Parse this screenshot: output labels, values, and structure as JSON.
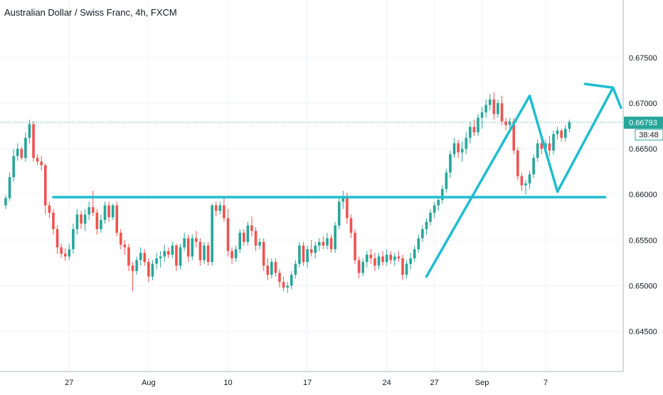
{
  "chart_data": {
    "type": "candlestick",
    "title": "Australian Dollar / Swiss Franc, 4h, FXCM",
    "symbol": "AUDCHF",
    "timeframe": "4h",
    "source": "FXCM",
    "last_price": "0.66793",
    "countdown": "38:48",
    "grid": true,
    "y_axis": {
      "position": "right",
      "range": [
        0.6406,
        0.6813
      ],
      "ticks": [
        0.645,
        0.65,
        0.655,
        0.66,
        0.665,
        0.67,
        0.675
      ],
      "tick_labels": [
        "0.64500",
        "0.65000",
        "0.65500",
        "0.66000",
        "0.66500",
        "0.67000",
        "0.67500"
      ]
    },
    "x_axis": {
      "ticks": [
        {
          "label": "27",
          "idx": 16
        },
        {
          "label": "Aug",
          "idx": 36
        },
        {
          "label": "10",
          "idx": 56
        },
        {
          "label": "17",
          "idx": 76
        },
        {
          "label": "24",
          "idx": 96
        },
        {
          "label": "27",
          "idx": 108
        },
        {
          "label": "Sep",
          "idx": 120
        },
        {
          "label": "7",
          "idx": 136
        }
      ]
    },
    "candles": [
      {
        "o": 0.6588,
        "h": 0.6599,
        "l": 0.6584,
        "c": 0.6596
      },
      {
        "o": 0.6596,
        "h": 0.6624,
        "l": 0.6593,
        "c": 0.6619
      },
      {
        "o": 0.6619,
        "h": 0.665,
        "l": 0.6614,
        "c": 0.6642
      },
      {
        "o": 0.6642,
        "h": 0.6656,
        "l": 0.6637,
        "c": 0.665
      },
      {
        "o": 0.665,
        "h": 0.6652,
        "l": 0.6638,
        "c": 0.664
      },
      {
        "o": 0.664,
        "h": 0.6668,
        "l": 0.6636,
        "c": 0.6662
      },
      {
        "o": 0.6662,
        "h": 0.6682,
        "l": 0.6656,
        "c": 0.6677
      },
      {
        "o": 0.6677,
        "h": 0.668,
        "l": 0.6636,
        "c": 0.664
      },
      {
        "o": 0.664,
        "h": 0.6644,
        "l": 0.6632,
        "c": 0.6636
      },
      {
        "o": 0.6636,
        "h": 0.6642,
        "l": 0.6626,
        "c": 0.6632
      },
      {
        "o": 0.6632,
        "h": 0.6634,
        "l": 0.6578,
        "c": 0.6588
      },
      {
        "o": 0.6588,
        "h": 0.6592,
        "l": 0.6574,
        "c": 0.658
      },
      {
        "o": 0.658,
        "h": 0.6584,
        "l": 0.6556,
        "c": 0.6562
      },
      {
        "o": 0.6562,
        "h": 0.6566,
        "l": 0.6535,
        "c": 0.6542
      },
      {
        "o": 0.6542,
        "h": 0.6546,
        "l": 0.6531,
        "c": 0.6535
      },
      {
        "o": 0.6535,
        "h": 0.6541,
        "l": 0.6527,
        "c": 0.6532
      },
      {
        "o": 0.6532,
        "h": 0.6546,
        "l": 0.6528,
        "c": 0.654
      },
      {
        "o": 0.654,
        "h": 0.6568,
        "l": 0.6535,
        "c": 0.6562
      },
      {
        "o": 0.6562,
        "h": 0.6584,
        "l": 0.6556,
        "c": 0.6578
      },
      {
        "o": 0.6578,
        "h": 0.6582,
        "l": 0.6562,
        "c": 0.6568
      },
      {
        "o": 0.6568,
        "h": 0.6584,
        "l": 0.656,
        "c": 0.6578
      },
      {
        "o": 0.6578,
        "h": 0.6592,
        "l": 0.6572,
        "c": 0.6586
      },
      {
        "o": 0.6586,
        "h": 0.6604,
        "l": 0.6576,
        "c": 0.658
      },
      {
        "o": 0.658,
        "h": 0.6584,
        "l": 0.6556,
        "c": 0.6562
      },
      {
        "o": 0.6562,
        "h": 0.6578,
        "l": 0.6558,
        "c": 0.6572
      },
      {
        "o": 0.6572,
        "h": 0.6592,
        "l": 0.6568,
        "c": 0.6588
      },
      {
        "o": 0.6588,
        "h": 0.6592,
        "l": 0.657,
        "c": 0.6575
      },
      {
        "o": 0.6575,
        "h": 0.659,
        "l": 0.6572,
        "c": 0.6588
      },
      {
        "o": 0.6588,
        "h": 0.6592,
        "l": 0.6554,
        "c": 0.6558
      },
      {
        "o": 0.6558,
        "h": 0.6562,
        "l": 0.654,
        "c": 0.6545
      },
      {
        "o": 0.6545,
        "h": 0.655,
        "l": 0.6534,
        "c": 0.6542
      },
      {
        "o": 0.6542,
        "h": 0.6546,
        "l": 0.6516,
        "c": 0.6522
      },
      {
        "o": 0.6522,
        "h": 0.6526,
        "l": 0.6494,
        "c": 0.6516
      },
      {
        "o": 0.6516,
        "h": 0.6532,
        "l": 0.6512,
        "c": 0.6528
      },
      {
        "o": 0.6528,
        "h": 0.6542,
        "l": 0.6522,
        "c": 0.6536
      },
      {
        "o": 0.6536,
        "h": 0.654,
        "l": 0.6522,
        "c": 0.6526
      },
      {
        "o": 0.6526,
        "h": 0.653,
        "l": 0.6504,
        "c": 0.651
      },
      {
        "o": 0.651,
        "h": 0.6528,
        "l": 0.6506,
        "c": 0.6524
      },
      {
        "o": 0.6524,
        "h": 0.6536,
        "l": 0.6518,
        "c": 0.653
      },
      {
        "o": 0.653,
        "h": 0.6538,
        "l": 0.652,
        "c": 0.6532
      },
      {
        "o": 0.6532,
        "h": 0.6545,
        "l": 0.6526,
        "c": 0.6538
      },
      {
        "o": 0.6538,
        "h": 0.6542,
        "l": 0.653,
        "c": 0.6534
      },
      {
        "o": 0.6534,
        "h": 0.6548,
        "l": 0.653,
        "c": 0.6544
      },
      {
        "o": 0.6544,
        "h": 0.6546,
        "l": 0.6516,
        "c": 0.6522
      },
      {
        "o": 0.6522,
        "h": 0.6546,
        "l": 0.6518,
        "c": 0.6542
      },
      {
        "o": 0.6542,
        "h": 0.6558,
        "l": 0.6538,
        "c": 0.6552
      },
      {
        "o": 0.6552,
        "h": 0.6556,
        "l": 0.6526,
        "c": 0.6532
      },
      {
        "o": 0.6532,
        "h": 0.6556,
        "l": 0.6528,
        "c": 0.6552
      },
      {
        "o": 0.6552,
        "h": 0.656,
        "l": 0.6542,
        "c": 0.6548
      },
      {
        "o": 0.6548,
        "h": 0.6552,
        "l": 0.6522,
        "c": 0.6528
      },
      {
        "o": 0.6528,
        "h": 0.6548,
        "l": 0.6524,
        "c": 0.6544
      },
      {
        "o": 0.6544,
        "h": 0.6548,
        "l": 0.6522,
        "c": 0.6526
      },
      {
        "o": 0.6526,
        "h": 0.659,
        "l": 0.6522,
        "c": 0.6588
      },
      {
        "o": 0.6588,
        "h": 0.6592,
        "l": 0.6576,
        "c": 0.6582
      },
      {
        "o": 0.6582,
        "h": 0.6592,
        "l": 0.6578,
        "c": 0.6588
      },
      {
        "o": 0.6588,
        "h": 0.6596,
        "l": 0.657,
        "c": 0.6574
      },
      {
        "o": 0.6574,
        "h": 0.6584,
        "l": 0.6532,
        "c": 0.6538
      },
      {
        "o": 0.6538,
        "h": 0.6542,
        "l": 0.6524,
        "c": 0.653
      },
      {
        "o": 0.653,
        "h": 0.6544,
        "l": 0.6526,
        "c": 0.654
      },
      {
        "o": 0.654,
        "h": 0.6562,
        "l": 0.6536,
        "c": 0.6558
      },
      {
        "o": 0.6558,
        "h": 0.6562,
        "l": 0.6544,
        "c": 0.6548
      },
      {
        "o": 0.6548,
        "h": 0.657,
        "l": 0.6544,
        "c": 0.6566
      },
      {
        "o": 0.6566,
        "h": 0.6576,
        "l": 0.6554,
        "c": 0.656
      },
      {
        "o": 0.656,
        "h": 0.6564,
        "l": 0.6538,
        "c": 0.6544
      },
      {
        "o": 0.6544,
        "h": 0.6552,
        "l": 0.654,
        "c": 0.6548
      },
      {
        "o": 0.6548,
        "h": 0.6552,
        "l": 0.6516,
        "c": 0.6522
      },
      {
        "o": 0.6522,
        "h": 0.653,
        "l": 0.6506,
        "c": 0.6512
      },
      {
        "o": 0.6512,
        "h": 0.653,
        "l": 0.6508,
        "c": 0.6526
      },
      {
        "o": 0.6526,
        "h": 0.653,
        "l": 0.651,
        "c": 0.6514
      },
      {
        "o": 0.6514,
        "h": 0.6518,
        "l": 0.6498,
        "c": 0.6504
      },
      {
        "o": 0.6504,
        "h": 0.651,
        "l": 0.6494,
        "c": 0.6498
      },
      {
        "o": 0.6498,
        "h": 0.6504,
        "l": 0.6492,
        "c": 0.65
      },
      {
        "o": 0.65,
        "h": 0.6516,
        "l": 0.6496,
        "c": 0.6512
      },
      {
        "o": 0.6512,
        "h": 0.6528,
        "l": 0.6508,
        "c": 0.6524
      },
      {
        "o": 0.6524,
        "h": 0.6548,
        "l": 0.652,
        "c": 0.6544
      },
      {
        "o": 0.6544,
        "h": 0.6548,
        "l": 0.6522,
        "c": 0.6526
      },
      {
        "o": 0.6526,
        "h": 0.6544,
        "l": 0.652,
        "c": 0.654
      },
      {
        "o": 0.654,
        "h": 0.655,
        "l": 0.6532,
        "c": 0.6536
      },
      {
        "o": 0.6536,
        "h": 0.6548,
        "l": 0.653,
        "c": 0.6544
      },
      {
        "o": 0.6544,
        "h": 0.6552,
        "l": 0.6538,
        "c": 0.6548
      },
      {
        "o": 0.6548,
        "h": 0.6554,
        "l": 0.654,
        "c": 0.6544
      },
      {
        "o": 0.6544,
        "h": 0.6558,
        "l": 0.654,
        "c": 0.6552
      },
      {
        "o": 0.6552,
        "h": 0.6556,
        "l": 0.6536,
        "c": 0.654
      },
      {
        "o": 0.654,
        "h": 0.657,
        "l": 0.6536,
        "c": 0.6566
      },
      {
        "o": 0.6566,
        "h": 0.6596,
        "l": 0.6562,
        "c": 0.6592
      },
      {
        "o": 0.6592,
        "h": 0.6604,
        "l": 0.6584,
        "c": 0.6598
      },
      {
        "o": 0.6598,
        "h": 0.6602,
        "l": 0.6568,
        "c": 0.6574
      },
      {
        "o": 0.6574,
        "h": 0.6578,
        "l": 0.6552,
        "c": 0.6558
      },
      {
        "o": 0.6558,
        "h": 0.6562,
        "l": 0.6524,
        "c": 0.6528
      },
      {
        "o": 0.6528,
        "h": 0.6532,
        "l": 0.6508,
        "c": 0.6514
      },
      {
        "o": 0.6514,
        "h": 0.653,
        "l": 0.651,
        "c": 0.6526
      },
      {
        "o": 0.6526,
        "h": 0.6538,
        "l": 0.652,
        "c": 0.6534
      },
      {
        "o": 0.6534,
        "h": 0.654,
        "l": 0.6524,
        "c": 0.653
      },
      {
        "o": 0.653,
        "h": 0.6536,
        "l": 0.6516,
        "c": 0.6522
      },
      {
        "o": 0.6522,
        "h": 0.6536,
        "l": 0.6518,
        "c": 0.6532
      },
      {
        "o": 0.6532,
        "h": 0.6538,
        "l": 0.6522,
        "c": 0.6526
      },
      {
        "o": 0.6526,
        "h": 0.654,
        "l": 0.6522,
        "c": 0.6534
      },
      {
        "o": 0.6534,
        "h": 0.6538,
        "l": 0.6524,
        "c": 0.6528
      },
      {
        "o": 0.6528,
        "h": 0.6536,
        "l": 0.6522,
        "c": 0.6532
      },
      {
        "o": 0.6532,
        "h": 0.6538,
        "l": 0.6526,
        "c": 0.653
      },
      {
        "o": 0.653,
        "h": 0.6534,
        "l": 0.6506,
        "c": 0.6512
      },
      {
        "o": 0.6512,
        "h": 0.6528,
        "l": 0.6508,
        "c": 0.6524
      },
      {
        "o": 0.6524,
        "h": 0.6536,
        "l": 0.6518,
        "c": 0.653
      },
      {
        "o": 0.653,
        "h": 0.6544,
        "l": 0.6526,
        "c": 0.654
      },
      {
        "o": 0.654,
        "h": 0.6556,
        "l": 0.6536,
        "c": 0.6552
      },
      {
        "o": 0.6552,
        "h": 0.6566,
        "l": 0.6548,
        "c": 0.6562
      },
      {
        "o": 0.6562,
        "h": 0.6574,
        "l": 0.6556,
        "c": 0.657
      },
      {
        "o": 0.657,
        "h": 0.6584,
        "l": 0.6566,
        "c": 0.658
      },
      {
        "o": 0.658,
        "h": 0.6592,
        "l": 0.6574,
        "c": 0.6588
      },
      {
        "o": 0.6588,
        "h": 0.6598,
        "l": 0.6582,
        "c": 0.6594
      },
      {
        "o": 0.6594,
        "h": 0.661,
        "l": 0.659,
        "c": 0.6606
      },
      {
        "o": 0.6606,
        "h": 0.6628,
        "l": 0.6602,
        "c": 0.6624
      },
      {
        "o": 0.6624,
        "h": 0.6648,
        "l": 0.6618,
        "c": 0.6644
      },
      {
        "o": 0.6644,
        "h": 0.6662,
        "l": 0.664,
        "c": 0.6656
      },
      {
        "o": 0.6656,
        "h": 0.666,
        "l": 0.664,
        "c": 0.6646
      },
      {
        "o": 0.6646,
        "h": 0.6658,
        "l": 0.6636,
        "c": 0.665
      },
      {
        "o": 0.665,
        "h": 0.6668,
        "l": 0.6644,
        "c": 0.6662
      },
      {
        "o": 0.6662,
        "h": 0.668,
        "l": 0.6656,
        "c": 0.6674
      },
      {
        "o": 0.6674,
        "h": 0.6682,
        "l": 0.6664,
        "c": 0.6668
      },
      {
        "o": 0.6668,
        "h": 0.6688,
        "l": 0.6664,
        "c": 0.6684
      },
      {
        "o": 0.6684,
        "h": 0.6696,
        "l": 0.6672,
        "c": 0.669
      },
      {
        "o": 0.669,
        "h": 0.6704,
        "l": 0.6684,
        "c": 0.6698
      },
      {
        "o": 0.6698,
        "h": 0.671,
        "l": 0.6692,
        "c": 0.6704
      },
      {
        "o": 0.6704,
        "h": 0.6712,
        "l": 0.6682,
        "c": 0.6688
      },
      {
        "o": 0.6688,
        "h": 0.6704,
        "l": 0.6684,
        "c": 0.67
      },
      {
        "o": 0.67,
        "h": 0.6708,
        "l": 0.6676,
        "c": 0.668
      },
      {
        "o": 0.668,
        "h": 0.6684,
        "l": 0.667,
        "c": 0.6676
      },
      {
        "o": 0.6676,
        "h": 0.6684,
        "l": 0.667,
        "c": 0.668
      },
      {
        "o": 0.668,
        "h": 0.6684,
        "l": 0.6644,
        "c": 0.6648
      },
      {
        "o": 0.6648,
        "h": 0.6652,
        "l": 0.6616,
        "c": 0.662
      },
      {
        "o": 0.662,
        "h": 0.6624,
        "l": 0.6604,
        "c": 0.661
      },
      {
        "o": 0.661,
        "h": 0.6616,
        "l": 0.66,
        "c": 0.6612
      },
      {
        "o": 0.6612,
        "h": 0.6626,
        "l": 0.6606,
        "c": 0.6622
      },
      {
        "o": 0.6622,
        "h": 0.6644,
        "l": 0.6618,
        "c": 0.664
      },
      {
        "o": 0.664,
        "h": 0.666,
        "l": 0.6636,
        "c": 0.6656
      },
      {
        "o": 0.6656,
        "h": 0.6662,
        "l": 0.6644,
        "c": 0.665
      },
      {
        "o": 0.665,
        "h": 0.666,
        "l": 0.6644,
        "c": 0.6656
      },
      {
        "o": 0.6656,
        "h": 0.6664,
        "l": 0.6642,
        "c": 0.6648
      },
      {
        "o": 0.6648,
        "h": 0.667,
        "l": 0.6644,
        "c": 0.6666
      },
      {
        "o": 0.6666,
        "h": 0.6674,
        "l": 0.666,
        "c": 0.667
      },
      {
        "o": 0.667,
        "h": 0.6672,
        "l": 0.6658,
        "c": 0.6662
      },
      {
        "o": 0.6662,
        "h": 0.6676,
        "l": 0.6658,
        "c": 0.6672
      },
      {
        "o": 0.6672,
        "h": 0.6682,
        "l": 0.6668,
        "c": 0.6679
      }
    ],
    "annotations": {
      "support_line": {
        "y": 0.6597,
        "idx_from": 12,
        "idx_to": 151,
        "color": "#1ebdd0"
      },
      "pattern": [
        {
          "idx": 106,
          "y": 0.651
        },
        {
          "idx": 132,
          "y": 0.6708
        },
        {
          "idx": 139,
          "y": 0.6603
        },
        {
          "idx": 153,
          "y": 0.6717
        }
      ],
      "arrowhead": [
        {
          "idx": 146,
          "y": 0.6721
        },
        {
          "idx": 153,
          "y": 0.6717
        },
        {
          "idx": 155,
          "y": 0.6695
        }
      ]
    },
    "colors": {
      "up": "#26a69a",
      "down": "#ef5350",
      "annotation": "#1ebdd0",
      "price_label_bg": "#26a69a",
      "price_line": "#26a69a"
    }
  }
}
